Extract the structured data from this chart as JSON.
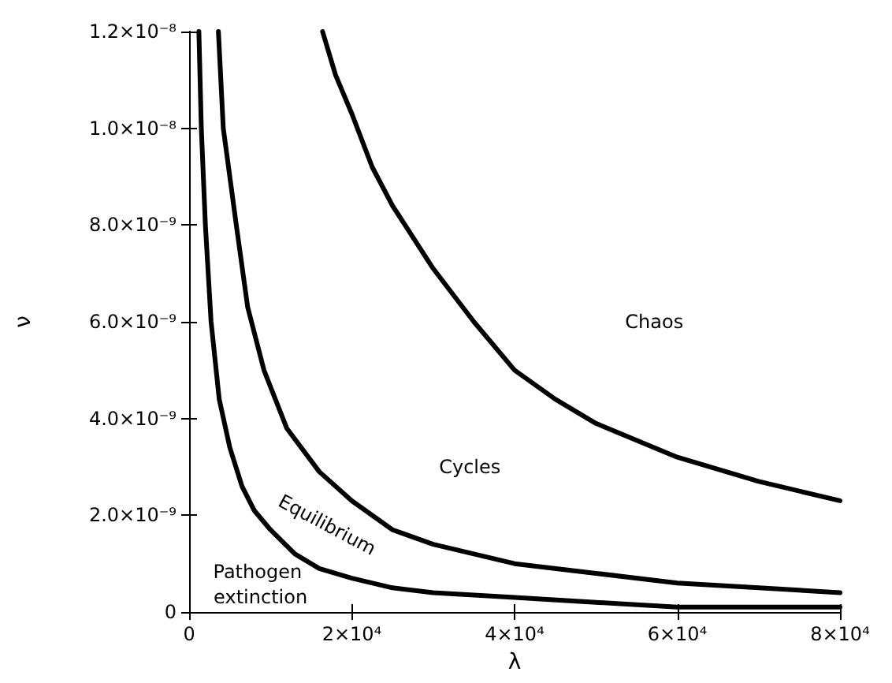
{
  "chart_data": {
    "type": "line",
    "xlabel": "λ",
    "ylabel": "ν",
    "xlim": [
      0,
      80000
    ],
    "ylim": [
      0,
      1.2e-08
    ],
    "xticks": [
      0,
      {
        "value": 20000,
        "label": "2×10⁴"
      },
      {
        "value": 40000,
        "label": "4×10⁴"
      },
      {
        "value": 60000,
        "label": "6×10⁴"
      },
      {
        "value": 80000,
        "label": "8×10⁴"
      }
    ],
    "yticks": [
      0,
      {
        "value": 2e-09,
        "label": "2.0×10⁻⁹"
      },
      {
        "value": 4e-09,
        "label": "4.0×10⁻⁹"
      },
      {
        "value": 6e-09,
        "label": "6.0×10⁻⁹"
      },
      {
        "value": 8e-09,
        "label": "8.0×10⁻⁹"
      },
      {
        "value": 1e-08,
        "label": "1.0×10⁻⁸"
      },
      {
        "value": 1.2e-08,
        "label": "1.2×10⁻⁸"
      }
    ],
    "grid": false,
    "marker": "none",
    "line_style": "solid",
    "series": [
      {
        "color": "#000000",
        "x": [
          1200,
          1500,
          2000,
          2700,
          3700,
          5000,
          6500,
          8000,
          10000,
          13000,
          16000,
          20000,
          25000,
          30000,
          40000,
          50000,
          60000,
          70000,
          80000
        ],
        "values": [
          1.2e-08,
          1e-08,
          8e-09,
          6e-09,
          4.4e-09,
          3.4e-09,
          2.6e-09,
          2.1e-09,
          1.7e-09,
          1.2e-09,
          9e-10,
          7e-10,
          5e-10,
          4e-10,
          3e-10,
          2e-10,
          1e-10,
          1e-10,
          1e-10
        ]
      },
      {
        "color": "#000000",
        "x": [
          3600,
          4200,
          5800,
          7200,
          9200,
          12000,
          16000,
          20000,
          25000,
          30000,
          40000,
          50000,
          60000,
          70000,
          80000
        ],
        "values": [
          1.2e-08,
          1e-08,
          8e-09,
          6.3e-09,
          5e-09,
          3.8e-09,
          2.9e-09,
          2.3e-09,
          1.7e-09,
          1.4e-09,
          1e-09,
          8e-10,
          6e-10,
          5e-10,
          4e-10
        ]
      },
      {
        "color": "#000000",
        "x": [
          16400,
          18000,
          20000,
          22500,
          25000,
          30000,
          35000,
          40000,
          45000,
          50000,
          60000,
          70000,
          80000
        ],
        "values": [
          1.2e-08,
          1.11e-08,
          1.03e-08,
          9.2e-09,
          8.4e-09,
          7.1e-09,
          6e-09,
          5e-09,
          4.4e-09,
          3.9e-09,
          3.2e-09,
          2.7e-09,
          2.3e-09
        ]
      }
    ],
    "annotations": [
      "Chaos",
      "Cycles",
      "Equilibrium",
      "Pathogen extinction"
    ]
  }
}
